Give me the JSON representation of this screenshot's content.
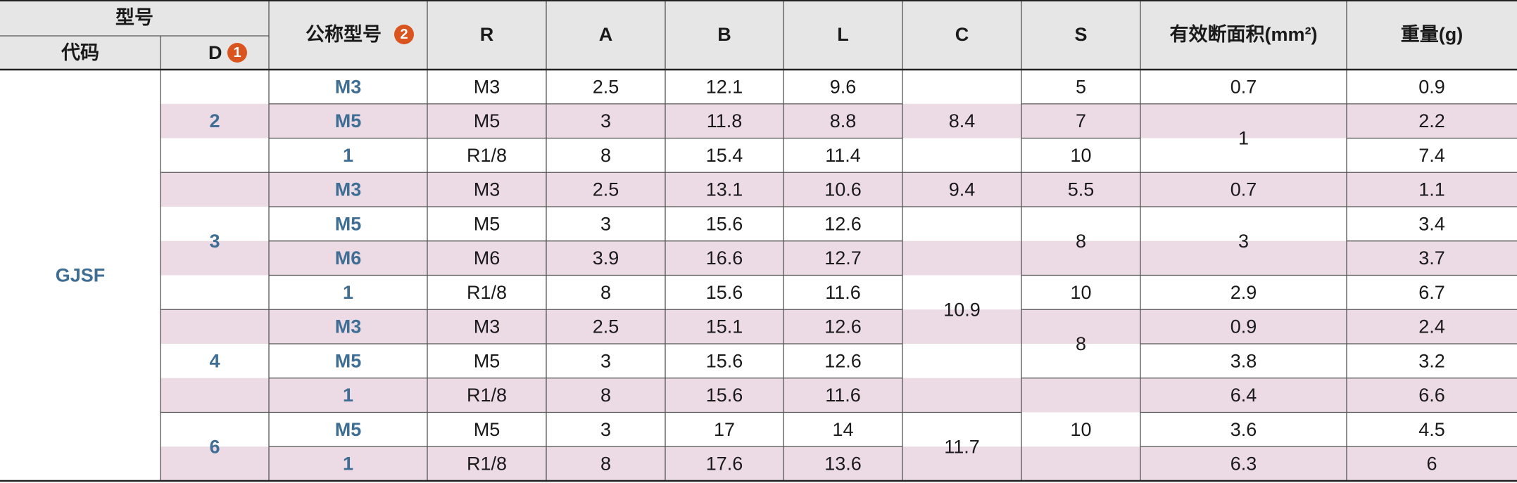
{
  "header": {
    "group_title": "型号",
    "code": "代码",
    "d": "D",
    "d_note": "1",
    "nominal": "公称型号",
    "nominal_note": "2",
    "columns": [
      "R",
      "A",
      "B",
      "L",
      "C",
      "S",
      "有效断面积(mm²)",
      "重量(g)"
    ]
  },
  "table": {
    "code": "GJSF",
    "rows": [
      [
        "2",
        "M3",
        "M3",
        2.5,
        12.1,
        9.6,
        8.4,
        5,
        0.7,
        0.9
      ],
      [
        null,
        "M5",
        "M5",
        3,
        11.8,
        8.8,
        null,
        7,
        1,
        2.2
      ],
      [
        null,
        "1",
        "R1/8",
        8,
        15.4,
        11.4,
        null,
        10,
        null,
        7.4
      ],
      [
        "3",
        "M3",
        "M3",
        2.5,
        13.1,
        10.6,
        9.4,
        5.5,
        0.7,
        1.1
      ],
      [
        null,
        "M5",
        "M5",
        3,
        15.6,
        12.6,
        10.9,
        8,
        3,
        3.4
      ],
      [
        null,
        "M6",
        "M6",
        3.9,
        16.6,
        12.7,
        null,
        null,
        null,
        3.7
      ],
      [
        null,
        "1",
        "R1/8",
        8,
        15.6,
        11.6,
        null,
        10,
        2.9,
        6.7
      ],
      [
        "4",
        "M3",
        "M3",
        2.5,
        15.1,
        12.6,
        null,
        8,
        0.9,
        2.4
      ],
      [
        null,
        "M5",
        "M5",
        3,
        15.6,
        12.6,
        null,
        null,
        3.8,
        3.2
      ],
      [
        null,
        "1",
        "R1/8",
        8,
        15.6,
        11.6,
        null,
        10,
        6.4,
        6.6
      ],
      [
        "6",
        "M5",
        "M5",
        3,
        17,
        14,
        11.7,
        null,
        3.6,
        4.5
      ],
      [
        null,
        "1",
        "R1/8",
        8,
        17.6,
        13.6,
        null,
        null,
        6.3,
        6
      ]
    ]
  }
}
